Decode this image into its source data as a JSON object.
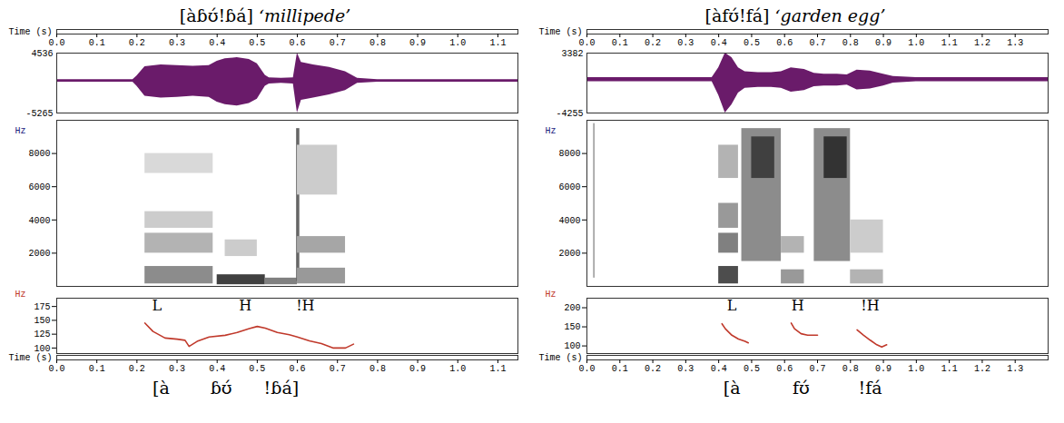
{
  "chart_data": [
    {
      "type": "acoustic",
      "title": "[àɓʊ́!ɓá]",
      "subtitle": "‘millipede’",
      "time_label": "Time (s)",
      "xlim": [
        0,
        1.15
      ],
      "xticks": [
        {
          "value": 0,
          "label": "0.0"
        },
        0.1,
        0.2,
        0.3,
        0.4,
        0.5,
        0.6,
        0.7,
        0.8,
        0.9,
        {
          "value": 1,
          "label": "1.0"
        },
        1.1
      ],
      "waveform": {
        "color": "#6a1b6a",
        "ylim": [
          -5265,
          4536
        ],
        "yticks": [
          -5265,
          4536
        ],
        "x": [
          0,
          0.19,
          0.2,
          0.22,
          0.26,
          0.3,
          0.34,
          0.38,
          0.4,
          0.42,
          0.45,
          0.48,
          0.5,
          0.52,
          0.53,
          0.56,
          0.59,
          0.6,
          0.61,
          0.64,
          0.68,
          0.72,
          0.75,
          0.8,
          1.15
        ],
        "upper": [
          200,
          200,
          800,
          2300,
          2600,
          2500,
          2400,
          2500,
          3200,
          3600,
          3800,
          3500,
          2800,
          900,
          500,
          400,
          500,
          4536,
          3000,
          2600,
          2200,
          1500,
          400,
          200,
          200
        ],
        "lower": [
          -200,
          -200,
          -900,
          -2500,
          -2800,
          -2700,
          -2500,
          -2700,
          -3500,
          -3900,
          -4100,
          -3700,
          -3000,
          -900,
          -500,
          -400,
          -500,
          -5265,
          -3200,
          -2800,
          -2300,
          -1600,
          -400,
          -200,
          -200
        ]
      },
      "spectrogram": {
        "y_label": "Hz",
        "ylim": [
          0,
          10000
        ],
        "yticks": [
          2000,
          4000,
          6000,
          8000
        ],
        "zlim": [
          0,
          1
        ],
        "cells": [
          {
            "t0": 0.22,
            "t1": 0.39,
            "f0": 150,
            "f1": 1200,
            "level": 0.45
          },
          {
            "t0": 0.22,
            "t1": 0.39,
            "f0": 2000,
            "f1": 3200,
            "level": 0.3
          },
          {
            "t0": 0.22,
            "t1": 0.39,
            "f0": 3500,
            "f1": 4500,
            "level": 0.2
          },
          {
            "t0": 0.22,
            "t1": 0.39,
            "f0": 6800,
            "f1": 8000,
            "level": 0.15
          },
          {
            "t0": 0.4,
            "t1": 0.52,
            "f0": 100,
            "f1": 700,
            "level": 0.75
          },
          {
            "t0": 0.42,
            "t1": 0.5,
            "f0": 1800,
            "f1": 2800,
            "level": 0.2
          },
          {
            "t0": 0.52,
            "t1": 0.6,
            "f0": 100,
            "f1": 500,
            "level": 0.5
          },
          {
            "t0": 0.598,
            "t1": 0.606,
            "f0": 300,
            "f1": 9500,
            "level": 0.6
          },
          {
            "t0": 0.6,
            "t1": 0.72,
            "f0": 150,
            "f1": 1100,
            "level": 0.4
          },
          {
            "t0": 0.6,
            "t1": 0.72,
            "f0": 2000,
            "f1": 3000,
            "level": 0.35
          },
          {
            "t0": 0.6,
            "t1": 0.7,
            "f0": 5500,
            "f1": 8500,
            "level": 0.2
          }
        ]
      },
      "pitch": {
        "y_label": "Hz",
        "color": "#c0392b",
        "ylim": [
          90,
          190
        ],
        "yticks": [
          100,
          125,
          150,
          175
        ],
        "x": [
          0.22,
          0.24,
          0.27,
          0.3,
          0.32,
          0.33,
          0.35,
          0.38,
          0.42,
          0.45,
          0.48,
          0.5,
          0.52,
          0.55,
          0.58,
          0.6,
          0.63,
          0.66,
          0.69,
          0.72,
          0.74
        ],
        "values": [
          145,
          130,
          118,
          116,
          114,
          103,
          112,
          120,
          123,
          128,
          135,
          139,
          136,
          128,
          124,
          120,
          113,
          108,
          100,
          100,
          107
        ]
      },
      "annotations": [
        {
          "text": "L",
          "x": 0.25
        },
        {
          "text": "H",
          "x": 0.47
        },
        {
          "text": "!H",
          "x": 0.62
        }
      ],
      "transcription": [
        {
          "text": "[à",
          "x": 0.26
        },
        {
          "text": "ɓʊ́",
          "x": 0.41
        },
        {
          "text": "!ɓá]",
          "x": 0.56
        }
      ]
    },
    {
      "type": "acoustic",
      "title": "[àfʊ́!fá]",
      "subtitle": "‘garden egg’",
      "time_label": "Time (s)",
      "xlim": [
        0,
        1.4
      ],
      "xticks": [
        {
          "value": 0,
          "label": "0.0"
        },
        0.1,
        0.2,
        0.3,
        0.4,
        0.5,
        0.6,
        0.7,
        0.8,
        0.9,
        {
          "value": 1,
          "label": "1.0"
        },
        1.1,
        1.2,
        1.3
      ],
      "waveform": {
        "color": "#6a1b6a",
        "ylim": [
          -4255,
          3382
        ],
        "yticks": [
          -4255,
          3382
        ],
        "x": [
          0,
          0.38,
          0.4,
          0.42,
          0.44,
          0.46,
          0.48,
          0.52,
          0.56,
          0.59,
          0.62,
          0.66,
          0.69,
          0.72,
          0.76,
          0.79,
          0.82,
          0.86,
          0.9,
          0.93,
          1,
          1.4
        ],
        "upper": [
          250,
          250,
          1500,
          3382,
          2800,
          1500,
          1000,
          900,
          900,
          1000,
          1500,
          1300,
          800,
          700,
          700,
          600,
          1200,
          1100,
          700,
          400,
          250,
          250
        ],
        "lower": [
          -250,
          -250,
          -2000,
          -4255,
          -3200,
          -1700,
          -1100,
          -1000,
          -1000,
          -1100,
          -1600,
          -1400,
          -900,
          -800,
          -800,
          -700,
          -1300,
          -1200,
          -800,
          -450,
          -250,
          -250
        ]
      },
      "spectrogram": {
        "y_label": "Hz",
        "ylim": [
          0,
          10000
        ],
        "yticks": [
          2000,
          4000,
          6000,
          8000
        ],
        "zlim": [
          0,
          1
        ],
        "cells": [
          {
            "t0": 0.02,
            "t1": 0.025,
            "f0": 500,
            "f1": 9800,
            "level": 0.35
          },
          {
            "t0": 0.4,
            "t1": 0.46,
            "f0": 150,
            "f1": 1200,
            "level": 0.7
          },
          {
            "t0": 0.4,
            "t1": 0.46,
            "f0": 2000,
            "f1": 3200,
            "level": 0.5
          },
          {
            "t0": 0.4,
            "t1": 0.46,
            "f0": 3500,
            "f1": 5000,
            "level": 0.4
          },
          {
            "t0": 0.4,
            "t1": 0.46,
            "f0": 6500,
            "f1": 8500,
            "level": 0.3
          },
          {
            "t0": 0.47,
            "t1": 0.59,
            "f0": 1500,
            "f1": 9500,
            "level": 0.45
          },
          {
            "t0": 0.5,
            "t1": 0.57,
            "f0": 6500,
            "f1": 9000,
            "level": 0.75
          },
          {
            "t0": 0.59,
            "t1": 0.66,
            "f0": 150,
            "f1": 1000,
            "level": 0.4
          },
          {
            "t0": 0.59,
            "t1": 0.66,
            "f0": 2000,
            "f1": 3000,
            "level": 0.3
          },
          {
            "t0": 0.69,
            "t1": 0.8,
            "f0": 1500,
            "f1": 9500,
            "level": 0.45
          },
          {
            "t0": 0.72,
            "t1": 0.79,
            "f0": 6500,
            "f1": 9000,
            "level": 0.8
          },
          {
            "t0": 0.8,
            "t1": 0.9,
            "f0": 150,
            "f1": 1000,
            "level": 0.3
          },
          {
            "t0": 0.8,
            "t1": 0.9,
            "f0": 2000,
            "f1": 4000,
            "level": 0.2
          }
        ]
      },
      "pitch": {
        "y_label": "Hz",
        "color": "#c0392b",
        "ylim": [
          80,
          225
        ],
        "yticks": [
          100,
          150,
          200
        ],
        "x": [
          0.41,
          0.42,
          0.44,
          0.46,
          0.48,
          0.49,
          0.55,
          0.62,
          0.63,
          0.65,
          0.67,
          0.7,
          0.76,
          0.82,
          0.84,
          0.86,
          0.88,
          0.895,
          0.91
        ],
        "values": [
          158,
          145,
          128,
          118,
          112,
          108,
          null,
          160,
          145,
          132,
          128,
          128,
          null,
          142,
          128,
          115,
          103,
          97,
          103
        ]
      },
      "annotations": [
        {
          "text": "L",
          "x": 0.44
        },
        {
          "text": "H",
          "x": 0.64
        },
        {
          "text": "!H",
          "x": 0.86
        }
      ],
      "transcription": [
        {
          "text": "[à",
          "x": 0.44
        },
        {
          "text": "fʊ́",
          "x": 0.65
        },
        {
          "text": "!fá",
          "x": 0.86
        }
      ]
    }
  ]
}
